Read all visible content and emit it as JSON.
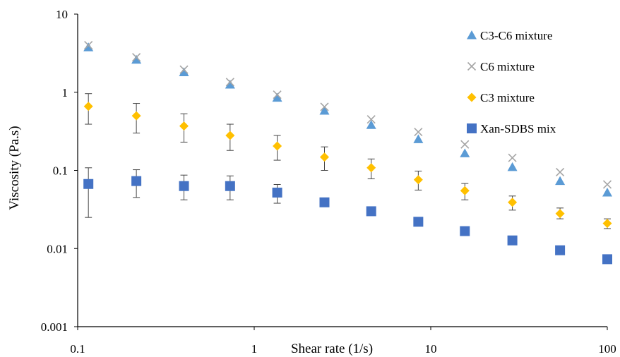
{
  "chart_data": {
    "type": "scatter",
    "title": "",
    "xlabel": "Shear rate (1/s)",
    "ylabel": "Viscosity (Pa.s)",
    "xscale": "log",
    "yscale": "log",
    "xlim": [
      0.1,
      100
    ],
    "ylim": [
      0.001,
      10
    ],
    "x_ticks": [
      "0.1",
      "1",
      "10",
      "100"
    ],
    "y_ticks": [
      "0.001",
      "0.01",
      "0.1",
      "1",
      "10"
    ],
    "grid": "none",
    "legend_position": "top-right",
    "x": [
      0.115,
      0.215,
      0.4,
      0.73,
      1.35,
      2.5,
      4.6,
      8.5,
      15.6,
      29,
      54,
      100
    ],
    "series": [
      {
        "name": "C3-C6 mixture",
        "marker": "triangle",
        "color": "#5b9bd5",
        "values": [
          3.75,
          2.6,
          1.8,
          1.25,
          0.85,
          0.58,
          0.38,
          0.25,
          0.165,
          0.11,
          0.073,
          0.052
        ]
      },
      {
        "name": "C6 mixture",
        "marker": "x",
        "color": "#a5a5a5",
        "values": [
          4.0,
          2.8,
          1.95,
          1.35,
          0.93,
          0.65,
          0.45,
          0.31,
          0.215,
          0.145,
          0.095,
          0.066
        ]
      },
      {
        "name": "C3 mixture",
        "marker": "diamond",
        "color": "#ffc000",
        "values": [
          0.66,
          0.5,
          0.37,
          0.28,
          0.205,
          0.148,
          0.108,
          0.076,
          0.055,
          0.039,
          0.028,
          0.021
        ],
        "error_low": [
          0.39,
          0.3,
          0.23,
          0.18,
          0.135,
          0.1,
          0.078,
          0.056,
          0.042,
          0.031,
          0.024,
          0.018
        ],
        "error_high": [
          0.96,
          0.72,
          0.53,
          0.39,
          0.28,
          0.2,
          0.14,
          0.098,
          0.068,
          0.047,
          0.033,
          0.024
        ]
      },
      {
        "name": "Xan-SDBS mix",
        "marker": "square",
        "color": "#4472c4",
        "values": [
          0.067,
          0.073,
          0.063,
          0.063,
          0.052,
          0.039,
          0.03,
          0.022,
          0.0167,
          0.0127,
          0.0095,
          0.0073
        ],
        "error_low": [
          0.025,
          0.045,
          0.042,
          0.042,
          0.038,
          0.035,
          0.027,
          0.02,
          0.0153,
          0.0117,
          0.0088,
          0.0067
        ],
        "error_high": [
          0.108,
          0.102,
          0.087,
          0.085,
          0.066,
          0.043,
          0.033,
          0.024,
          0.018,
          0.0137,
          0.0102,
          0.0079
        ]
      }
    ]
  }
}
